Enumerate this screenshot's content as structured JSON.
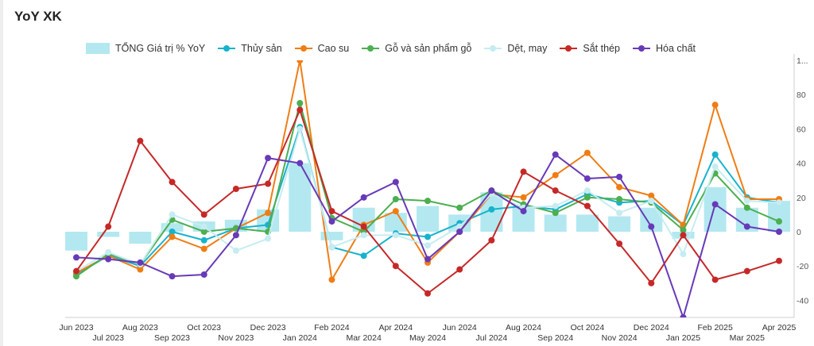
{
  "header": {
    "title": "YoY XK"
  },
  "chart_data": {
    "type": "line",
    "title": "YoY XK",
    "xlabel": "",
    "ylabel": "",
    "ylim": [
      -50,
      100
    ],
    "yticks": [
      -40,
      -20,
      0,
      20,
      40,
      60,
      80,
      "1..."
    ],
    "grid": false,
    "legend_position": "top",
    "categories": [
      "Jun 2023",
      "Jul 2023",
      "Aug 2023",
      "Sep 2023",
      "Oct 2023",
      "Nov 2023",
      "Dec 2023",
      "Jan 2024",
      "Feb 2024",
      "Mar 2024",
      "Apr 2024",
      "May 2024",
      "Jun 2024",
      "Jul 2024",
      "Aug 2024",
      "Sep 2024",
      "Oct 2024",
      "Nov 2024",
      "Dec 2024",
      "Jan 2025",
      "Feb 2025",
      "Mar 2025",
      "Apr 2025"
    ],
    "series": [
      {
        "name": "TỔNG Giá trị % YoY",
        "type": "bar",
        "color": "#b3e8f0",
        "values": [
          -11,
          -3,
          -7,
          5,
          6,
          7,
          13,
          40,
          -5,
          14,
          11,
          15,
          10,
          23,
          15,
          10,
          10,
          9,
          14,
          -4,
          26,
          14,
          18
        ]
      },
      {
        "name": "Thủy sản",
        "type": "line",
        "color": "#17b3cc",
        "values": [
          -25,
          -14,
          -20,
          0,
          -5,
          2,
          4,
          61,
          -9,
          -14,
          -1,
          -3,
          5,
          13,
          15,
          13,
          22,
          17,
          18,
          4,
          45,
          20,
          17
        ]
      },
      {
        "name": "Cao su",
        "type": "line",
        "color": "#f07d14",
        "values": [
          -24,
          -14,
          -22,
          -3,
          -10,
          2,
          11,
          100,
          -28,
          4,
          12,
          -18,
          0,
          22,
          20,
          33,
          46,
          26,
          21,
          4,
          74,
          19,
          19
        ]
      },
      {
        "name": "Gỗ và sản phẩm gỗ",
        "type": "line",
        "color": "#4caf50",
        "values": [
          -26,
          -13,
          -19,
          7,
          0,
          2,
          0,
          75,
          8,
          0,
          19,
          18,
          14,
          24,
          16,
          11,
          20,
          19,
          17,
          1,
          34,
          14,
          6
        ]
      },
      {
        "name": "Dệt, may",
        "type": "line",
        "color": "#c6ecf2",
        "values": [
          -23,
          -12,
          -19,
          10,
          3,
          -11,
          -4,
          60,
          -9,
          -2,
          -2,
          -8,
          3,
          22,
          14,
          15,
          24,
          11,
          18,
          -13,
          38,
          18,
          17
        ]
      },
      {
        "name": "Sắt thép",
        "type": "line",
        "color": "#c62828",
        "values": [
          -23,
          3,
          53,
          29,
          10,
          25,
          28,
          71,
          12,
          3,
          -20,
          -36,
          -22,
          -5,
          35,
          24,
          15,
          -7,
          -30,
          -2,
          -28,
          -23,
          -17
        ]
      },
      {
        "name": "Hóa chất",
        "type": "line",
        "color": "#673ab7",
        "values": [
          -15,
          -16,
          -18,
          -26,
          -25,
          -2,
          43,
          40,
          6,
          20,
          29,
          -16,
          0,
          24,
          12,
          45,
          31,
          32,
          3,
          -50,
          16,
          3,
          0
        ]
      }
    ]
  }
}
